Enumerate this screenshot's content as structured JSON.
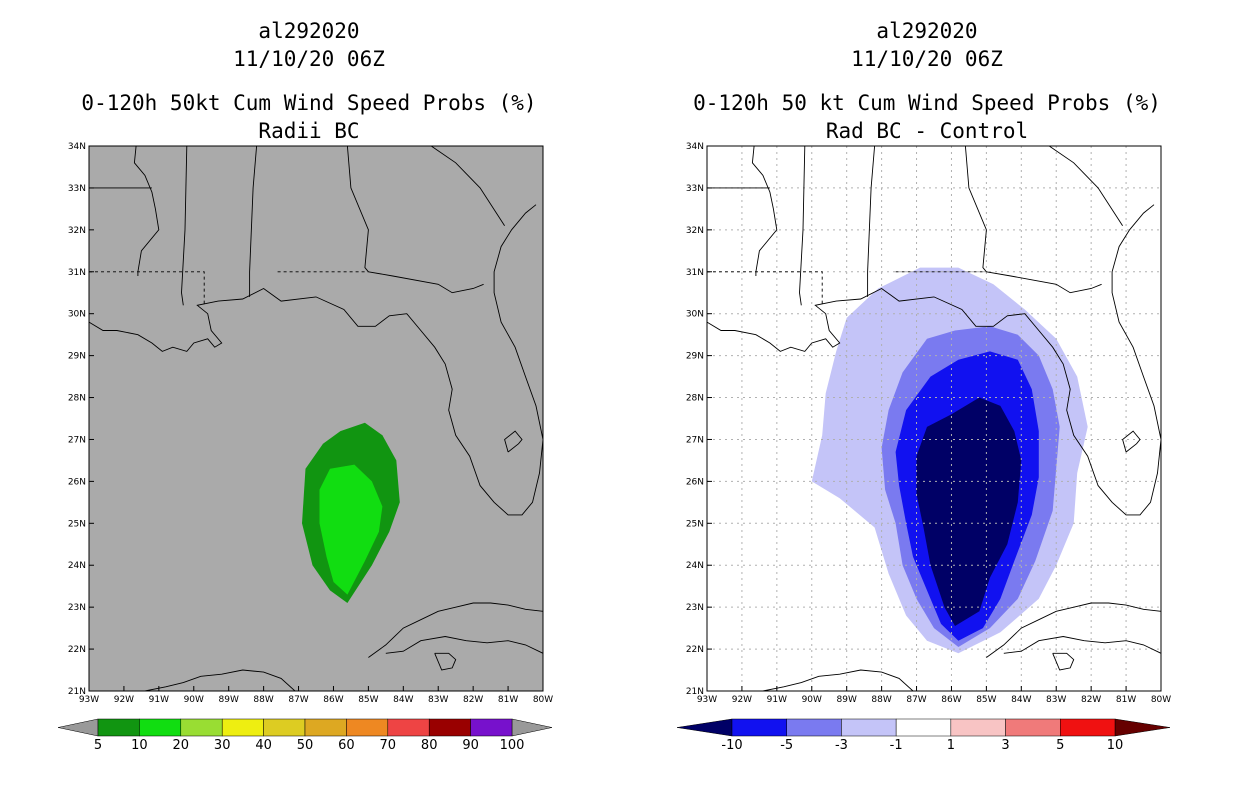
{
  "chart_data": [
    {
      "type": "contour-map",
      "title_lines": [
        "al292020",
        "11/10/20 06Z",
        "0-120h 50kt Cum Wind Speed Probs (%)",
        "Radii BC"
      ],
      "xlim": [
        -93,
        -80
      ],
      "ylim": [
        21,
        34
      ],
      "x_ticks": [
        -93,
        -92,
        -91,
        -90,
        -89,
        -88,
        -87,
        -86,
        -85,
        -84,
        -83,
        -82,
        -81,
        -80
      ],
      "x_tick_labels": [
        "93W",
        "92W",
        "91W",
        "90W",
        "89W",
        "88W",
        "87W",
        "86W",
        "85W",
        "84W",
        "83W",
        "82W",
        "81W",
        "80W"
      ],
      "y_ticks": [
        21,
        22,
        23,
        24,
        25,
        26,
        27,
        28,
        29,
        30,
        31,
        32,
        33,
        34
      ],
      "y_tick_labels": [
        "21N",
        "22N",
        "23N",
        "24N",
        "25N",
        "26N",
        "27N",
        "28N",
        "29N",
        "30N",
        "31N",
        "32N",
        "33N",
        "34N"
      ],
      "grid": false,
      "background_color": "#aaaaaa",
      "levels": [
        {
          "name": "5-10%",
          "color": "#119511",
          "polygon": [
            [
              -85.6,
              23.1
            ],
            [
              -86.1,
              23.4
            ],
            [
              -86.6,
              24
            ],
            [
              -86.9,
              25
            ],
            [
              -86.8,
              26.3
            ],
            [
              -86.3,
              26.9
            ],
            [
              -85.8,
              27.2
            ],
            [
              -85.1,
              27.4
            ],
            [
              -84.6,
              27.1
            ],
            [
              -84.2,
              26.5
            ],
            [
              -84.1,
              25.5
            ],
            [
              -84.4,
              24.8
            ],
            [
              -84.9,
              24
            ]
          ]
        },
        {
          "name": "10-20%",
          "color": "#11dd11",
          "polygon": [
            [
              -85.6,
              23.3
            ],
            [
              -86,
              23.6
            ],
            [
              -86.2,
              24.2
            ],
            [
              -86.4,
              25
            ],
            [
              -86.4,
              25.8
            ],
            [
              -86.1,
              26.3
            ],
            [
              -85.4,
              26.4
            ],
            [
              -84.9,
              26
            ],
            [
              -84.6,
              25.4
            ],
            [
              -84.7,
              24.8
            ],
            [
              -85.1,
              24.1
            ]
          ]
        }
      ],
      "colorbar": {
        "labels": [
          "5",
          "10",
          "20",
          "30",
          "40",
          "50",
          "60",
          "70",
          "80",
          "90",
          "100"
        ],
        "colors": [
          "#119511",
          "#11dd11",
          "#99dd33",
          "#eeee11",
          "#ddcc22",
          "#dda822",
          "#ee8822",
          "#ee4444",
          "#990000",
          "#7711cc"
        ],
        "under_color": "#999999",
        "over_color": "#999999"
      }
    },
    {
      "type": "contour-map",
      "title_lines": [
        "al292020",
        "11/10/20 06Z",
        "0-120h 50 kt Cum Wind Speed Probs (%)",
        "Rad BC - Control"
      ],
      "xlim": [
        -93,
        -80
      ],
      "ylim": [
        21,
        34
      ],
      "x_ticks": [
        -93,
        -92,
        -91,
        -90,
        -89,
        -88,
        -87,
        -86,
        -85,
        -84,
        -83,
        -82,
        -81,
        -80
      ],
      "x_tick_labels": [
        "93W",
        "92W",
        "91W",
        "90W",
        "89W",
        "88W",
        "87W",
        "86W",
        "85W",
        "84W",
        "83W",
        "82W",
        "81W",
        "80W"
      ],
      "y_ticks": [
        21,
        22,
        23,
        24,
        25,
        26,
        27,
        28,
        29,
        30,
        31,
        32,
        33,
        34
      ],
      "y_tick_labels": [
        "21N",
        "22N",
        "23N",
        "24N",
        "25N",
        "26N",
        "27N",
        "28N",
        "29N",
        "30N",
        "31N",
        "32N",
        "33N",
        "34N"
      ],
      "grid": true,
      "background_color": "#ffffff",
      "levels": [
        {
          "name": "-3 to -1",
          "color": "#c4c4f8",
          "polygon": [
            [
              -85.8,
              21.9
            ],
            [
              -86.7,
              22.2
            ],
            [
              -87.3,
              22.8
            ],
            [
              -87.8,
              23.8
            ],
            [
              -88.2,
              24.9
            ],
            [
              -89.2,
              25.6
            ],
            [
              -90,
              26
            ],
            [
              -89.7,
              27.1
            ],
            [
              -89.6,
              28.1
            ],
            [
              -89.3,
              29.1
            ],
            [
              -89,
              29.9
            ],
            [
              -88.1,
              30.6
            ],
            [
              -86.9,
              31.1
            ],
            [
              -85.8,
              31.1
            ],
            [
              -84.8,
              30.7
            ],
            [
              -83.9,
              30.1
            ],
            [
              -83,
              29.4
            ],
            [
              -82.4,
              28.5
            ],
            [
              -82.1,
              27.3
            ],
            [
              -82.4,
              26.2
            ],
            [
              -82.5,
              25
            ],
            [
              -83,
              24
            ],
            [
              -83.5,
              23.2
            ],
            [
              -84.6,
              22.4
            ]
          ]
        },
        {
          "name": "-5 to -3",
          "color": "#7a7af0",
          "polygon": [
            [
              -85.8,
              22.05
            ],
            [
              -86.5,
              22.5
            ],
            [
              -87,
              23.2
            ],
            [
              -87.4,
              24
            ],
            [
              -87.6,
              25
            ],
            [
              -87.9,
              25.8
            ],
            [
              -88,
              26.8
            ],
            [
              -87.8,
              27.7
            ],
            [
              -87.4,
              28.6
            ],
            [
              -86.7,
              29.4
            ],
            [
              -85.9,
              29.6
            ],
            [
              -84.9,
              29.7
            ],
            [
              -84.1,
              29.5
            ],
            [
              -83.5,
              29
            ],
            [
              -83.1,
              28.2
            ],
            [
              -82.9,
              27.3
            ],
            [
              -83,
              26.3
            ],
            [
              -83.1,
              25.3
            ],
            [
              -83.6,
              24.1
            ],
            [
              -84.1,
              23.2
            ],
            [
              -84.9,
              22.5
            ]
          ]
        },
        {
          "name": "-10 to -5",
          "color": "#1111f0",
          "polygon": [
            [
              -85.8,
              22.2
            ],
            [
              -86.3,
              22.6
            ],
            [
              -86.7,
              23.4
            ],
            [
              -87.1,
              24.2
            ],
            [
              -87.3,
              25
            ],
            [
              -87.5,
              25.9
            ],
            [
              -87.6,
              26.7
            ],
            [
              -87.3,
              27.7
            ],
            [
              -86.6,
              28.5
            ],
            [
              -85.8,
              28.9
            ],
            [
              -84.9,
              29.1
            ],
            [
              -84.1,
              28.9
            ],
            [
              -83.7,
              28.2
            ],
            [
              -83.5,
              27.2
            ],
            [
              -83.5,
              26.1
            ],
            [
              -83.7,
              25.2
            ],
            [
              -84.2,
              24.1
            ],
            [
              -84.6,
              23.2
            ],
            [
              -85.1,
              22.5
            ]
          ]
        },
        {
          "name": "below -10",
          "color": "#000066",
          "polygon": [
            [
              -85.9,
              22.55
            ],
            [
              -86.2,
              23
            ],
            [
              -86.6,
              24
            ],
            [
              -86.8,
              24.9
            ],
            [
              -87,
              25.7
            ],
            [
              -87,
              26.6
            ],
            [
              -86.7,
              27.3
            ],
            [
              -86,
              27.6
            ],
            [
              -85.2,
              28
            ],
            [
              -84.6,
              27.8
            ],
            [
              -84.2,
              27.2
            ],
            [
              -84,
              26.5
            ],
            [
              -84.1,
              25.5
            ],
            [
              -84.4,
              24.5
            ],
            [
              -84.9,
              23.7
            ],
            [
              -85.2,
              22.9
            ]
          ]
        }
      ],
      "colorbar": {
        "labels": [
          "-10",
          "-5",
          "-3",
          "-1",
          "1",
          "3",
          "5",
          "10"
        ],
        "colors": [
          "#1111f0",
          "#7a7af0",
          "#c4c4f8",
          "#ffffff",
          "#f8c4c4",
          "#f07a7a",
          "#f01111"
        ],
        "under_color": "#000066",
        "over_color": "#660000"
      }
    }
  ],
  "map_geometry_lonlat": {
    "coast_gulf": [
      [
        -93,
        29.8
      ],
      [
        -92.6,
        29.6
      ],
      [
        -92.2,
        29.6
      ],
      [
        -91.6,
        29.5
      ],
      [
        -91.2,
        29.3
      ],
      [
        -90.9,
        29.1
      ],
      [
        -90.6,
        29.2
      ],
      [
        -90.2,
        29.1
      ],
      [
        -90,
        29.3
      ],
      [
        -89.6,
        29.4
      ],
      [
        -89.4,
        29.2
      ],
      [
        -89.2,
        29.3
      ],
      [
        -89.5,
        29.6
      ],
      [
        -89.6,
        30
      ],
      [
        -89.9,
        30.2
      ],
      [
        -89.3,
        30.3
      ],
      [
        -88.6,
        30.35
      ],
      [
        -88,
        30.6
      ],
      [
        -87.5,
        30.3
      ],
      [
        -86.5,
        30.4
      ],
      [
        -85.7,
        30.1
      ],
      [
        -85.3,
        29.7
      ],
      [
        -84.8,
        29.7
      ],
      [
        -84.4,
        29.95
      ],
      [
        -83.9,
        30
      ],
      [
        -83.5,
        29.6
      ],
      [
        -83.1,
        29.2
      ],
      [
        -82.8,
        28.8
      ],
      [
        -82.6,
        28.2
      ],
      [
        -82.7,
        27.7
      ],
      [
        -82.5,
        27.1
      ],
      [
        -82.1,
        26.6
      ],
      [
        -81.8,
        25.9
      ],
      [
        -81.4,
        25.5
      ],
      [
        -81,
        25.2
      ],
      [
        -80.6,
        25.2
      ],
      [
        -80.3,
        25.5
      ],
      [
        -80.1,
        26.2
      ],
      [
        -80,
        27
      ],
      [
        -80.2,
        27.8
      ],
      [
        -80.5,
        28.5
      ],
      [
        -80.8,
        29.2
      ],
      [
        -81.2,
        29.8
      ],
      [
        -81.4,
        30.5
      ],
      [
        -81.4,
        31
      ],
      [
        -81.2,
        31.6
      ],
      [
        -80.9,
        32
      ],
      [
        -80.5,
        32.4
      ],
      [
        -80.2,
        32.6
      ]
    ],
    "coast_cuba": [
      [
        -85,
        21.8
      ],
      [
        -84.5,
        22.1
      ],
      [
        -84,
        22.5
      ],
      [
        -83.5,
        22.7
      ],
      [
        -83,
        22.9
      ],
      [
        -82.5,
        23
      ],
      [
        -82,
        23.1
      ],
      [
        -81.5,
        23.1
      ],
      [
        -81,
        23.05
      ],
      [
        -80.5,
        22.95
      ],
      [
        -80,
        22.9
      ]
    ],
    "coast_cuba_south": [
      [
        -84.5,
        21.9
      ],
      [
        -84,
        21.95
      ],
      [
        -83.5,
        22.2
      ],
      [
        -82.8,
        22.3
      ],
      [
        -82.2,
        22.2
      ],
      [
        -81.6,
        22.15
      ],
      [
        -81,
        22.2
      ],
      [
        -80.5,
        22.1
      ],
      [
        -80,
        21.9
      ]
    ],
    "isle_of_youth": [
      [
        -83.1,
        21.9
      ],
      [
        -82.9,
        21.5
      ],
      [
        -82.6,
        21.55
      ],
      [
        -82.5,
        21.75
      ],
      [
        -82.7,
        21.9
      ],
      [
        -83.1,
        21.9
      ]
    ],
    "yucatan": [
      [
        -91.4,
        21
      ],
      [
        -90.8,
        21.1
      ],
      [
        -90.3,
        21.2
      ],
      [
        -89.8,
        21.35
      ],
      [
        -89.2,
        21.4
      ],
      [
        -88.6,
        21.5
      ],
      [
        -88,
        21.45
      ],
      [
        -87.5,
        21.3
      ],
      [
        -87.1,
        21
      ]
    ],
    "lake_okeechobee": [
      [
        -81,
        26.7
      ],
      [
        -80.7,
        26.9
      ],
      [
        -80.6,
        27
      ],
      [
        -80.8,
        27.2
      ],
      [
        -81.1,
        27
      ],
      [
        -81,
        26.7
      ]
    ],
    "state_borders_solid": [
      [
        [
          -91.65,
          34
        ],
        [
          -91.7,
          33.6
        ],
        [
          -91.4,
          33.3
        ],
        [
          -91.2,
          32.9
        ],
        [
          -91.1,
          32.5
        ],
        [
          -91,
          32
        ],
        [
          -91.5,
          31.5
        ],
        [
          -91.6,
          31
        ],
        [
          -91.6,
          30.9
        ]
      ],
      [
        [
          -93,
          33
        ],
        [
          -91.2,
          33
        ]
      ],
      [
        [
          -90.2,
          34
        ],
        [
          -90.25,
          32
        ],
        [
          -90.35,
          30.5
        ],
        [
          -90.3,
          30.2
        ]
      ],
      [
        [
          -88.2,
          34
        ],
        [
          -88.3,
          33
        ],
        [
          -88.4,
          31
        ],
        [
          -88.4,
          30.4
        ]
      ],
      [
        [
          -85.6,
          34
        ],
        [
          -85.5,
          33
        ],
        [
          -85,
          32
        ],
        [
          -85.1,
          31.1
        ],
        [
          -85,
          31
        ]
      ],
      [
        [
          -85,
          31
        ],
        [
          -84.3,
          30.9
        ],
        [
          -83,
          30.7
        ],
        [
          -82.6,
          30.5
        ],
        [
          -82,
          30.6
        ],
        [
          -81.7,
          30.7
        ]
      ],
      [
        [
          -83.2,
          34
        ],
        [
          -82.5,
          33.6
        ],
        [
          -81.8,
          33
        ],
        [
          -81.1,
          32.1
        ]
      ]
    ],
    "state_borders_dashed": [
      [
        [
          -93,
          31
        ],
        [
          -89.7,
          31
        ],
        [
          -89.7,
          30.2
        ]
      ],
      [
        [
          -87.6,
          31
        ],
        [
          -85,
          31
        ]
      ]
    ]
  }
}
